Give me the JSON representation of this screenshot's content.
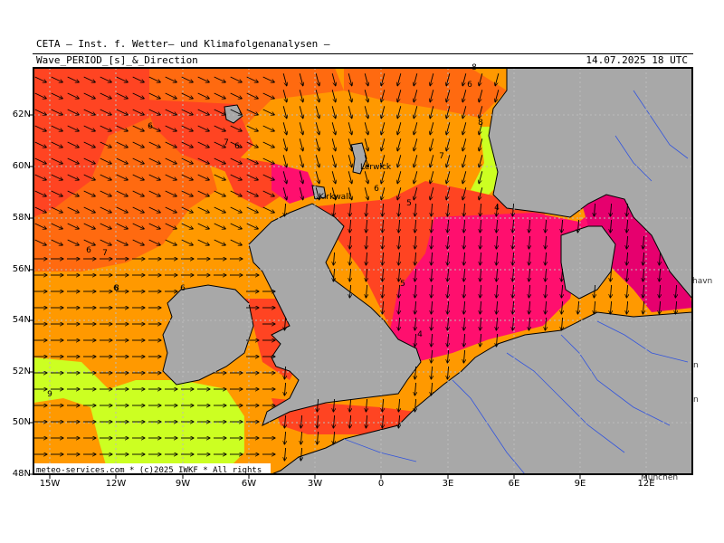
{
  "header": {
    "institute": "CETA – Inst. f. Wetter– und Klimafolgenanalysen –",
    "parameter": "Wave_PERIOD_[s]_&_Direction",
    "valid_time": "14.07.2025  18 UTC"
  },
  "credit": "meteo-services.com * (c)2025 IWKF * All rights",
  "axes": {
    "lat_labels": [
      "62N",
      "60N",
      "58N",
      "56N",
      "54N",
      "52N",
      "50N",
      "48N"
    ],
    "lon_labels": [
      "15W",
      "12W",
      "9W",
      "6W",
      "3W",
      "0",
      "3E",
      "6E",
      "9E",
      "12E"
    ]
  },
  "places": [
    "Lerwick",
    "Kirkwall"
  ],
  "edge_text": [
    "havn",
    "n",
    "n",
    "München"
  ],
  "period_labels": [
    "6",
    "7",
    "6",
    "6",
    "7",
    "8",
    "6",
    "5",
    "4",
    "5",
    "4",
    "8",
    "6",
    "6",
    "7",
    "8",
    "6",
    "9"
  ],
  "colors": {
    "ocean_red": "#ff4422",
    "ocean_orange": "#ff9900",
    "ocean_dark_orange": "#ff6a10",
    "ocean_magenta": "#ff0f6e",
    "ocean_pink": "#e6006e",
    "ocean_yellow_green": "#ccff22",
    "land": "#a8a8a8",
    "rivers": "#3355dd",
    "grid": "#bbbbbb"
  }
}
